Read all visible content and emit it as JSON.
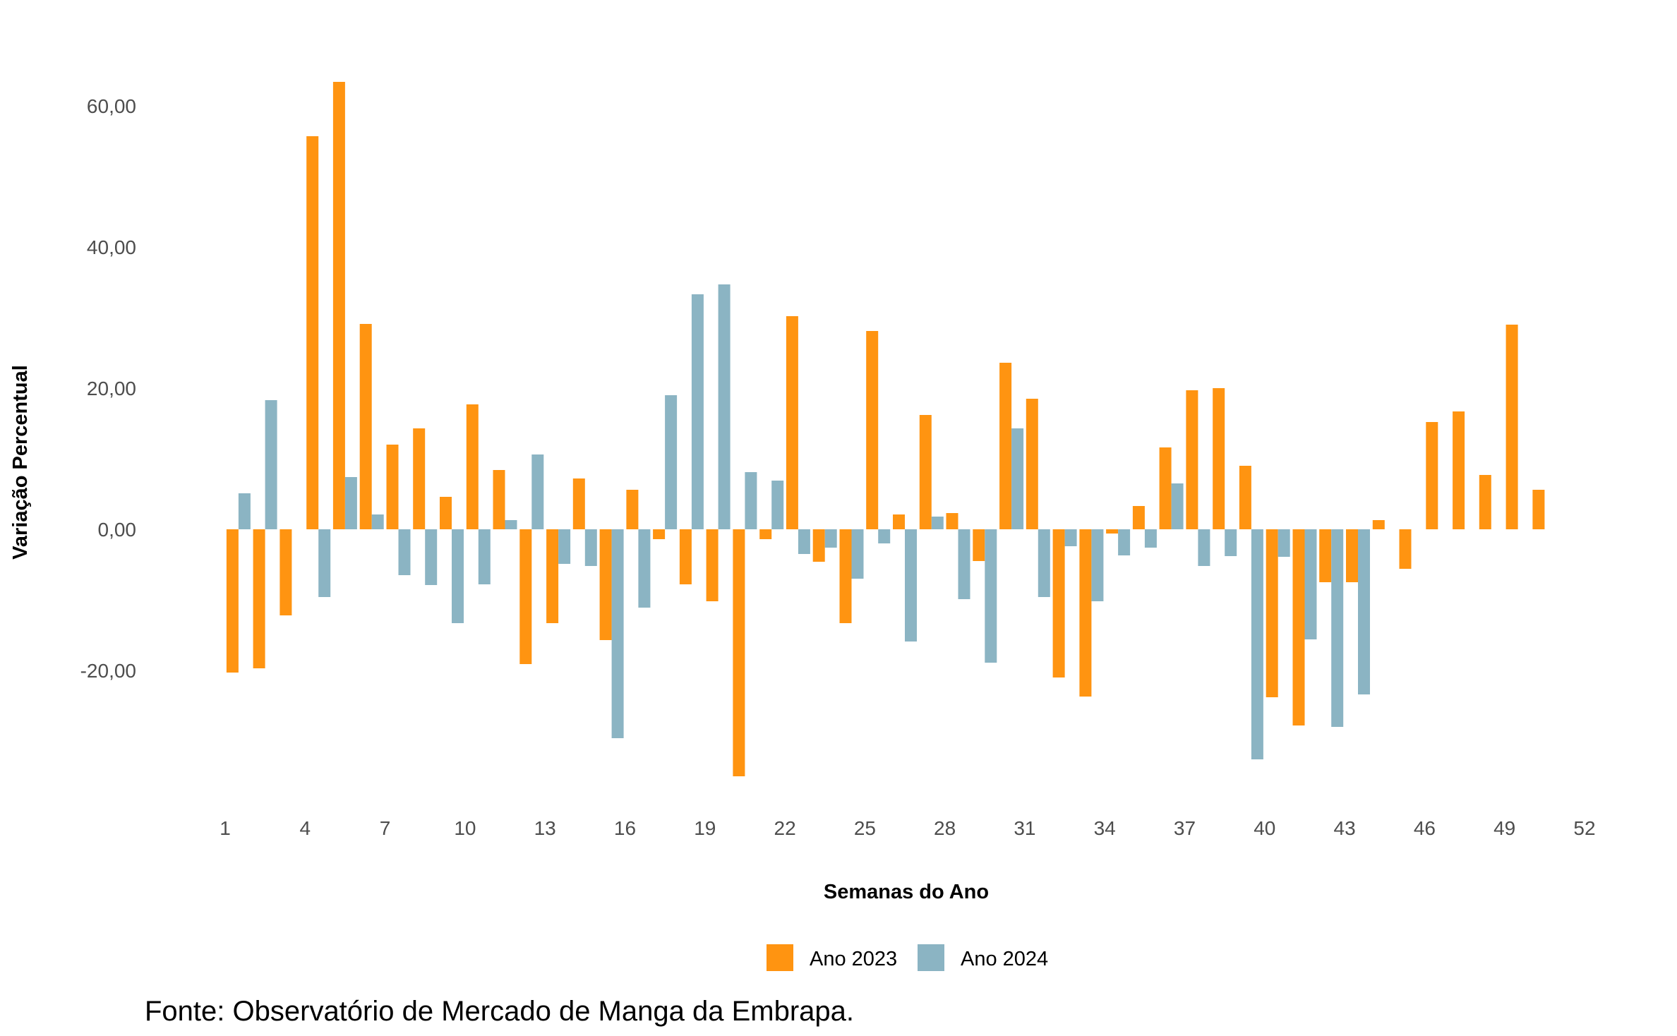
{
  "chart_data": {
    "type": "bar",
    "title": "",
    "xlabel": "Semanas do Ano",
    "ylabel": "Variação Percentual",
    "x": [
      1,
      2,
      3,
      4,
      5,
      6,
      7,
      8,
      9,
      10,
      11,
      12,
      13,
      14,
      15,
      16,
      17,
      18,
      19,
      20,
      21,
      22,
      23,
      24,
      25,
      26,
      27,
      28,
      29,
      30,
      31,
      32,
      33,
      34,
      35,
      36,
      37,
      38,
      39,
      40,
      41,
      42,
      43,
      44,
      45,
      46,
      47,
      48,
      49,
      50,
      51
    ],
    "x_ticks": [
      1,
      4,
      7,
      10,
      13,
      16,
      19,
      22,
      25,
      28,
      31,
      34,
      37,
      40,
      43,
      46,
      49,
      52
    ],
    "xlim": [
      1,
      52
    ],
    "y_ticks": [
      -20,
      0,
      20,
      40,
      60
    ],
    "y_tick_labels": [
      "-20,00",
      "0,00",
      "20,00",
      "40,00",
      "60,00"
    ],
    "ylim": [
      -37,
      66
    ],
    "grid": false,
    "legend_position": "bottom",
    "series": [
      {
        "name": "Ano 2023",
        "color": "#FF9411",
        "values": [
          -20.3,
          -19.7,
          -12.2,
          55.7,
          63.4,
          29.1,
          12.0,
          14.3,
          4.6,
          17.7,
          8.4,
          -19.1,
          -13.3,
          7.2,
          -15.7,
          5.6,
          -1.4,
          -7.8,
          -10.2,
          -35.0,
          -1.4,
          30.2,
          -4.6,
          -13.3,
          28.1,
          2.1,
          16.2,
          2.3,
          -4.5,
          23.6,
          18.5,
          -21.0,
          -23.7,
          -0.6,
          3.3,
          11.6,
          19.7,
          20.0,
          9.0,
          -23.8,
          -27.8,
          -7.5,
          -7.5,
          1.3,
          -5.6,
          15.2,
          16.7,
          7.7,
          29.0,
          5.6,
          null
        ],
        "offset": "left"
      },
      {
        "name": "Ano 2024",
        "color": "#8BB4C3",
        "values": [
          5.1,
          18.3,
          null,
          -9.6,
          7.4,
          2.1,
          -6.5,
          -7.9,
          -13.3,
          -7.8,
          1.3,
          10.6,
          -4.9,
          -5.2,
          -29.6,
          -11.1,
          19.0,
          33.3,
          34.7,
          8.1,
          6.9,
          -3.5,
          -2.6,
          -7.0,
          -2.0,
          -15.9,
          1.8,
          -9.9,
          -18.9,
          14.3,
          -9.6,
          -2.4,
          -10.2,
          -3.7,
          -2.6,
          6.5,
          -5.2,
          -3.8,
          -32.6,
          -3.9,
          -15.6,
          -28.0,
          -23.4,
          null,
          null,
          null,
          null,
          null,
          null,
          null,
          null
        ],
        "offset": "right"
      }
    ],
    "legend": [
      {
        "name": "Ano 2023",
        "color": "#FF9411"
      },
      {
        "name": "Ano 2024",
        "color": "#8BB4C3"
      }
    ],
    "note": "Fonte: Observatório de Mercado de Manga da Embrapa."
  }
}
